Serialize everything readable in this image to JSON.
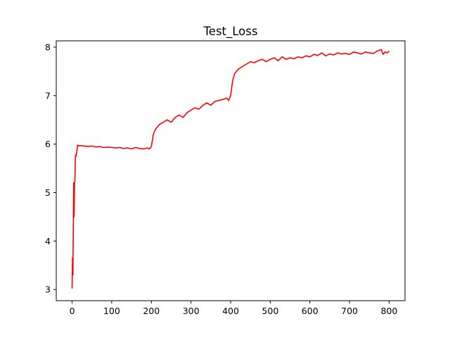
{
  "chart_data": {
    "type": "line",
    "title": "Test_Loss",
    "xlabel": "",
    "ylabel": "",
    "xlim": [
      -40,
      840
    ],
    "ylim": [
      2.77,
      8.13
    ],
    "grid": false,
    "legend": "none",
    "xticks": [
      0,
      100,
      200,
      300,
      400,
      500,
      600,
      700,
      800
    ],
    "xtick_labels": [
      "0",
      "100",
      "200",
      "300",
      "400",
      "500",
      "600",
      "700",
      "800"
    ],
    "yticks": [
      3,
      4,
      5,
      6,
      7,
      8
    ],
    "ytick_labels": [
      "3",
      "4",
      "5",
      "6",
      "7",
      "8"
    ],
    "series": [
      {
        "color": "#ff0000",
        "x": [
          0,
          1,
          2,
          3,
          4,
          5,
          6,
          7,
          8,
          9,
          10,
          12,
          14,
          16,
          18,
          20,
          30,
          40,
          50,
          60,
          70,
          80,
          90,
          100,
          110,
          120,
          130,
          140,
          150,
          160,
          170,
          180,
          190,
          195,
          200,
          205,
          210,
          220,
          230,
          240,
          250,
          260,
          270,
          280,
          290,
          300,
          310,
          320,
          330,
          340,
          350,
          360,
          370,
          380,
          390,
          395,
          400,
          405,
          410,
          420,
          430,
          440,
          450,
          460,
          470,
          480,
          490,
          500,
          510,
          520,
          530,
          540,
          550,
          560,
          570,
          580,
          590,
          600,
          610,
          620,
          630,
          640,
          650,
          660,
          670,
          680,
          690,
          700,
          710,
          720,
          730,
          740,
          750,
          760,
          770,
          780,
          785,
          790,
          795,
          800
        ],
        "y": [
          3.02,
          3.65,
          3.3,
          4.2,
          5.2,
          4.5,
          5.15,
          5.25,
          5.7,
          5.78,
          5.75,
          5.85,
          5.98,
          5.96,
          5.97,
          5.97,
          5.96,
          5.95,
          5.96,
          5.94,
          5.95,
          5.93,
          5.94,
          5.93,
          5.92,
          5.93,
          5.91,
          5.92,
          5.9,
          5.93,
          5.91,
          5.9,
          5.92,
          5.9,
          5.95,
          6.2,
          6.3,
          6.4,
          6.45,
          6.5,
          6.45,
          6.55,
          6.6,
          6.55,
          6.65,
          6.7,
          6.75,
          6.72,
          6.8,
          6.85,
          6.8,
          6.88,
          6.9,
          6.92,
          6.95,
          6.9,
          7.0,
          7.3,
          7.45,
          7.55,
          7.6,
          7.65,
          7.7,
          7.68,
          7.72,
          7.75,
          7.7,
          7.75,
          7.78,
          7.72,
          7.8,
          7.75,
          7.78,
          7.76,
          7.8,
          7.78,
          7.82,
          7.8,
          7.85,
          7.83,
          7.88,
          7.82,
          7.86,
          7.84,
          7.88,
          7.86,
          7.87,
          7.85,
          7.9,
          7.88,
          7.86,
          7.9,
          7.88,
          7.87,
          7.92,
          7.95,
          7.85,
          7.9,
          7.88,
          7.92
        ]
      }
    ]
  }
}
